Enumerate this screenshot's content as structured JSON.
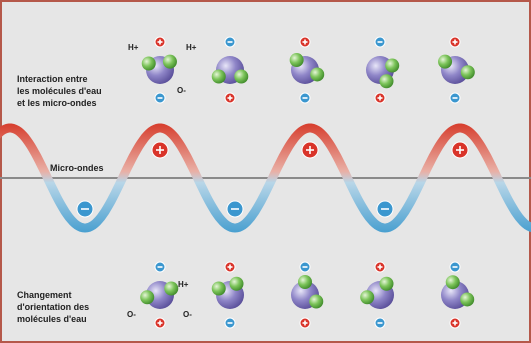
{
  "top_label": [
    "Interaction entre",
    "les molécules d'eau",
    "et les micro-ondes"
  ],
  "top_atoms": [
    "H+",
    "H+",
    "O-"
  ],
  "wave_label": "Micro-ondes",
  "bottom_label": [
    "Changement",
    "d'orientation des",
    "molécules d'eau"
  ],
  "bottom_atoms": [
    "H+",
    "O-",
    "O-"
  ]
}
